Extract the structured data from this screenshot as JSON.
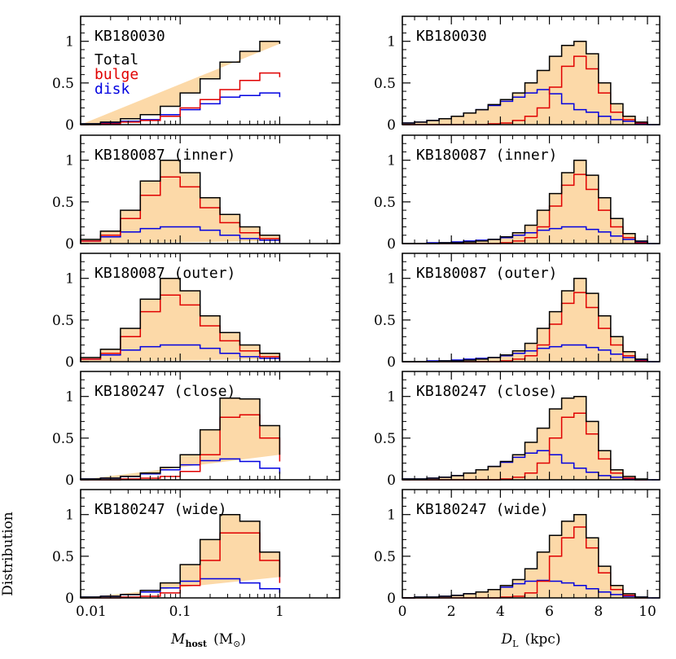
{
  "figure": {
    "ylabel": "Distribution",
    "xlabel_left": {
      "main": "M",
      "sub": "host",
      "open": "(M",
      "sub2": "⊙",
      "close": ")"
    },
    "xlabel_right": {
      "main": "D",
      "sub": "L",
      "unit": "(kpc)"
    }
  },
  "legend": {
    "entries": [
      {
        "name": "Total",
        "color": "#000000"
      },
      {
        "name": "bulge",
        "color": "#e00000"
      },
      {
        "name": "disk",
        "color": "#0000e0"
      }
    ]
  },
  "colors": {
    "total_fill": "#fcd9a8",
    "total": "#000000",
    "bulge": "#e00000",
    "disk": "#0000e0"
  },
  "chart_data": [
    {
      "type": "histogram",
      "panel": "KB180030 (mass)",
      "label": "KB180030",
      "xscale": "log",
      "xlim": [
        0.01,
        4
      ],
      "ylim": [
        0,
        1.3
      ],
      "xticks": [
        "0.01",
        "0.1",
        "1"
      ],
      "yticks": [
        "0",
        "0.5",
        "1"
      ],
      "bin_edges_log10": [
        -2.0,
        -1.8,
        -1.6,
        -1.4,
        -1.2,
        -1.0,
        -0.8,
        -0.6,
        -0.4,
        -0.2,
        0.0
      ],
      "series": [
        {
          "name": "Total",
          "values": [
            0.01,
            0.03,
            0.07,
            0.12,
            0.22,
            0.38,
            0.55,
            0.75,
            0.88,
            1.0,
            0.97
          ]
        },
        {
          "name": "bulge",
          "values": [
            0.0,
            0.01,
            0.03,
            0.05,
            0.1,
            0.2,
            0.3,
            0.42,
            0.53,
            0.62,
            0.57
          ]
        },
        {
          "name": "disk",
          "values": [
            0.01,
            0.02,
            0.04,
            0.06,
            0.12,
            0.18,
            0.25,
            0.33,
            0.35,
            0.38,
            0.33
          ]
        }
      ]
    },
    {
      "type": "histogram",
      "panel": "KB180030 (distance)",
      "label": "KB180030",
      "xscale": "linear",
      "xlim": [
        0,
        10.5
      ],
      "ylim": [
        0,
        1.3
      ],
      "xticks": [
        "0",
        "2",
        "4",
        "6",
        "8",
        "10"
      ],
      "yticks": [
        "0",
        "0.5",
        "1"
      ],
      "bin_edges": [
        0,
        0.5,
        1.0,
        1.5,
        2.0,
        2.5,
        3.0,
        3.5,
        4.0,
        4.5,
        5.0,
        5.5,
        6.0,
        6.5,
        7.0,
        7.5,
        8.0,
        8.5,
        9.0,
        9.5,
        10.0
      ],
      "series": [
        {
          "name": "Total",
          "values": [
            0.02,
            0.03,
            0.05,
            0.07,
            0.1,
            0.14,
            0.18,
            0.24,
            0.3,
            0.38,
            0.5,
            0.65,
            0.82,
            0.95,
            1.0,
            0.85,
            0.5,
            0.25,
            0.1,
            0.03
          ]
        },
        {
          "name": "bulge",
          "values": [
            0.0,
            0.0,
            0.0,
            0.0,
            0.0,
            0.0,
            0.0,
            0.01,
            0.02,
            0.05,
            0.1,
            0.2,
            0.45,
            0.7,
            0.82,
            0.67,
            0.38,
            0.15,
            0.06,
            0.02
          ]
        },
        {
          "name": "disk",
          "values": [
            0.02,
            0.03,
            0.05,
            0.07,
            0.1,
            0.14,
            0.18,
            0.23,
            0.28,
            0.33,
            0.38,
            0.42,
            0.37,
            0.25,
            0.18,
            0.15,
            0.1,
            0.06,
            0.04,
            0.01
          ]
        }
      ]
    },
    {
      "type": "histogram",
      "panel": "KB180087 (inner) (mass)",
      "label": "KB180087 (inner)",
      "xscale": "log",
      "xlim": [
        0.01,
        4
      ],
      "ylim": [
        0,
        1.3
      ],
      "xticks": [
        "0.01",
        "0.1",
        "1"
      ],
      "yticks": [
        "0",
        "0.5",
        "1"
      ],
      "bin_edges_log10": [
        -2.0,
        -1.8,
        -1.6,
        -1.4,
        -1.2,
        -1.0,
        -0.8,
        -0.6,
        -0.4,
        -0.2,
        0.0
      ],
      "series": [
        {
          "name": "Total",
          "values": [
            0.05,
            0.15,
            0.4,
            0.75,
            1.0,
            0.85,
            0.55,
            0.35,
            0.2,
            0.1,
            0.03
          ]
        },
        {
          "name": "bulge",
          "values": [
            0.03,
            0.1,
            0.3,
            0.58,
            0.8,
            0.68,
            0.43,
            0.25,
            0.13,
            0.06,
            0.02
          ]
        },
        {
          "name": "disk",
          "values": [
            0.03,
            0.08,
            0.14,
            0.18,
            0.2,
            0.2,
            0.16,
            0.1,
            0.06,
            0.04,
            0.01
          ]
        }
      ]
    },
    {
      "type": "histogram",
      "panel": "KB180087 (inner) (distance)",
      "label": "KB180087 (inner)",
      "xscale": "linear",
      "xlim": [
        0,
        10.5
      ],
      "ylim": [
        0,
        1.3
      ],
      "xticks": [
        "0",
        "2",
        "4",
        "6",
        "8",
        "10"
      ],
      "yticks": [
        "0",
        "0.5",
        "1"
      ],
      "bin_edges": [
        0,
        0.5,
        1.0,
        1.5,
        2.0,
        2.5,
        3.0,
        3.5,
        4.0,
        4.5,
        5.0,
        5.5,
        6.0,
        6.5,
        7.0,
        7.5,
        8.0,
        8.5,
        9.0,
        9.5,
        10.0
      ],
      "series": [
        {
          "name": "Total",
          "values": [
            0.0,
            0.0,
            0.0,
            0.01,
            0.01,
            0.02,
            0.03,
            0.05,
            0.08,
            0.13,
            0.22,
            0.4,
            0.6,
            0.85,
            1.0,
            0.82,
            0.55,
            0.3,
            0.12,
            0.03
          ]
        },
        {
          "name": "bulge",
          "values": [
            0.0,
            0.0,
            0.0,
            0.0,
            0.0,
            0.0,
            0.0,
            0.0,
            0.01,
            0.03,
            0.07,
            0.2,
            0.45,
            0.7,
            0.83,
            0.65,
            0.4,
            0.2,
            0.07,
            0.01
          ]
        },
        {
          "name": "disk",
          "values": [
            0.0,
            0.0,
            0.01,
            0.01,
            0.02,
            0.03,
            0.04,
            0.05,
            0.07,
            0.1,
            0.13,
            0.16,
            0.18,
            0.2,
            0.2,
            0.17,
            0.14,
            0.09,
            0.05,
            0.02
          ]
        }
      ]
    },
    {
      "type": "histogram",
      "panel": "KB180087 (outer) (mass)",
      "label": "KB180087 (outer)",
      "xscale": "log",
      "xlim": [
        0.01,
        4
      ],
      "ylim": [
        0,
        1.3
      ],
      "xticks": [
        "0.01",
        "0.1",
        "1"
      ],
      "yticks": [
        "0",
        "0.5",
        "1"
      ],
      "bin_edges_log10": [
        -2.0,
        -1.8,
        -1.6,
        -1.4,
        -1.2,
        -1.0,
        -0.8,
        -0.6,
        -0.4,
        -0.2,
        0.0
      ],
      "series": [
        {
          "name": "Total",
          "values": [
            0.05,
            0.15,
            0.4,
            0.75,
            1.0,
            0.85,
            0.55,
            0.35,
            0.2,
            0.1,
            0.03
          ]
        },
        {
          "name": "bulge",
          "values": [
            0.03,
            0.1,
            0.3,
            0.6,
            0.8,
            0.68,
            0.43,
            0.25,
            0.13,
            0.06,
            0.02
          ]
        },
        {
          "name": "disk",
          "values": [
            0.03,
            0.08,
            0.14,
            0.18,
            0.2,
            0.2,
            0.16,
            0.1,
            0.06,
            0.04,
            0.01
          ]
        }
      ]
    },
    {
      "type": "histogram",
      "panel": "KB180087 (outer) (distance)",
      "label": "KB180087 (outer)",
      "xscale": "linear",
      "xlim": [
        0,
        10.5
      ],
      "ylim": [
        0,
        1.3
      ],
      "xticks": [
        "0",
        "2",
        "4",
        "6",
        "8",
        "10"
      ],
      "yticks": [
        "0",
        "0.5",
        "1"
      ],
      "bin_edges": [
        0,
        0.5,
        1.0,
        1.5,
        2.0,
        2.5,
        3.0,
        3.5,
        4.0,
        4.5,
        5.0,
        5.5,
        6.0,
        6.5,
        7.0,
        7.5,
        8.0,
        8.5,
        9.0,
        9.5,
        10.0
      ],
      "series": [
        {
          "name": "Total",
          "values": [
            0.0,
            0.0,
            0.0,
            0.01,
            0.01,
            0.02,
            0.03,
            0.05,
            0.08,
            0.13,
            0.22,
            0.4,
            0.6,
            0.85,
            1.0,
            0.82,
            0.55,
            0.3,
            0.12,
            0.03
          ]
        },
        {
          "name": "bulge",
          "values": [
            0.0,
            0.0,
            0.0,
            0.0,
            0.0,
            0.0,
            0.0,
            0.0,
            0.01,
            0.03,
            0.07,
            0.2,
            0.45,
            0.7,
            0.83,
            0.65,
            0.4,
            0.2,
            0.07,
            0.01
          ]
        },
        {
          "name": "disk",
          "values": [
            0.0,
            0.0,
            0.01,
            0.01,
            0.02,
            0.03,
            0.04,
            0.05,
            0.07,
            0.1,
            0.13,
            0.16,
            0.18,
            0.2,
            0.2,
            0.17,
            0.14,
            0.09,
            0.05,
            0.02
          ]
        }
      ]
    },
    {
      "type": "histogram",
      "panel": "KB180247 (close) (mass)",
      "label": "KB180247 (close)",
      "xscale": "log",
      "xlim": [
        0.01,
        4
      ],
      "ylim": [
        0,
        1.3
      ],
      "xticks": [
        "0.01",
        "0.1",
        "1"
      ],
      "yticks": [
        "0",
        "0.5",
        "1"
      ],
      "bin_edges_log10": [
        -2.0,
        -1.8,
        -1.6,
        -1.4,
        -1.2,
        -1.0,
        -0.8,
        -0.6,
        -0.4,
        -0.2,
        0.0
      ],
      "series": [
        {
          "name": "Total",
          "values": [
            0.01,
            0.02,
            0.04,
            0.08,
            0.15,
            0.3,
            0.6,
            0.98,
            0.97,
            0.65,
            0.3
          ]
        },
        {
          "name": "bulge",
          "values": [
            0.0,
            0.0,
            0.01,
            0.02,
            0.04,
            0.1,
            0.3,
            0.75,
            0.78,
            0.5,
            0.22
          ]
        },
        {
          "name": "disk",
          "values": [
            0.01,
            0.02,
            0.04,
            0.07,
            0.12,
            0.18,
            0.23,
            0.25,
            0.22,
            0.14,
            0.07
          ]
        }
      ]
    },
    {
      "type": "histogram",
      "panel": "KB180247 (close) (distance)",
      "label": "KB180247 (close)",
      "xscale": "linear",
      "xlim": [
        0,
        10.5
      ],
      "ylim": [
        0,
        1.3
      ],
      "xticks": [
        "0",
        "2",
        "4",
        "6",
        "8",
        "10"
      ],
      "yticks": [
        "0",
        "0.5",
        "1"
      ],
      "bin_edges": [
        0,
        0.5,
        1.0,
        1.5,
        2.0,
        2.5,
        3.0,
        3.5,
        4.0,
        4.5,
        5.0,
        5.5,
        6.0,
        6.5,
        7.0,
        7.5,
        8.0,
        8.5,
        9.0,
        9.5,
        10.0
      ],
      "series": [
        {
          "name": "Total",
          "values": [
            0.01,
            0.01,
            0.02,
            0.03,
            0.05,
            0.08,
            0.12,
            0.16,
            0.22,
            0.3,
            0.45,
            0.62,
            0.85,
            0.98,
            1.0,
            0.7,
            0.35,
            0.12,
            0.04,
            0.01
          ]
        },
        {
          "name": "bulge",
          "values": [
            0.0,
            0.0,
            0.0,
            0.0,
            0.0,
            0.0,
            0.0,
            0.0,
            0.01,
            0.03,
            0.08,
            0.2,
            0.5,
            0.75,
            0.8,
            0.55,
            0.25,
            0.08,
            0.02,
            0.0
          ]
        },
        {
          "name": "disk",
          "values": [
            0.01,
            0.01,
            0.02,
            0.03,
            0.05,
            0.08,
            0.12,
            0.16,
            0.21,
            0.27,
            0.32,
            0.35,
            0.3,
            0.2,
            0.14,
            0.09,
            0.05,
            0.03,
            0.01,
            0.0
          ]
        }
      ]
    },
    {
      "type": "histogram",
      "panel": "KB180247 (wide) (mass)",
      "label": "KB180247 (wide)",
      "xscale": "log",
      "xlim": [
        0.01,
        4
      ],
      "ylim": [
        0,
        1.3
      ],
      "xticks": [
        "0.01",
        "0.1",
        "1"
      ],
      "yticks": [
        "0",
        "0.5",
        "1"
      ],
      "bin_edges_log10": [
        -2.0,
        -1.8,
        -1.6,
        -1.4,
        -1.2,
        -1.0,
        -0.8,
        -0.6,
        -0.4,
        -0.2,
        0.0
      ],
      "series": [
        {
          "name": "Total",
          "values": [
            0.01,
            0.02,
            0.04,
            0.09,
            0.18,
            0.4,
            0.7,
            1.0,
            0.92,
            0.55,
            0.25
          ]
        },
        {
          "name": "bulge",
          "values": [
            0.0,
            0.0,
            0.01,
            0.02,
            0.06,
            0.15,
            0.45,
            0.78,
            0.78,
            0.45,
            0.18
          ]
        },
        {
          "name": "disk",
          "values": [
            0.01,
            0.02,
            0.04,
            0.07,
            0.12,
            0.2,
            0.23,
            0.23,
            0.18,
            0.11,
            0.06
          ]
        }
      ]
    },
    {
      "type": "histogram",
      "panel": "KB180247 (wide) (distance)",
      "label": "KB180247 (wide)",
      "xscale": "linear",
      "xlim": [
        0,
        10.5
      ],
      "ylim": [
        0,
        1.3
      ],
      "xticks": [
        "0",
        "2",
        "4",
        "6",
        "8",
        "10"
      ],
      "yticks": [
        "0",
        "0.5",
        "1"
      ],
      "bin_edges": [
        0,
        0.5,
        1.0,
        1.5,
        2.0,
        2.5,
        3.0,
        3.5,
        4.0,
        4.5,
        5.0,
        5.5,
        6.0,
        6.5,
        7.0,
        7.5,
        8.0,
        8.5,
        9.0,
        9.5,
        10.0
      ],
      "series": [
        {
          "name": "Total",
          "values": [
            0.0,
            0.01,
            0.01,
            0.02,
            0.03,
            0.05,
            0.07,
            0.1,
            0.15,
            0.22,
            0.35,
            0.55,
            0.75,
            0.92,
            1.0,
            0.72,
            0.38,
            0.15,
            0.05,
            0.01
          ]
        },
        {
          "name": "bulge",
          "values": [
            0.0,
            0.0,
            0.0,
            0.0,
            0.0,
            0.0,
            0.0,
            0.0,
            0.01,
            0.02,
            0.06,
            0.2,
            0.5,
            0.72,
            0.85,
            0.6,
            0.3,
            0.1,
            0.03,
            0.0
          ]
        },
        {
          "name": "disk",
          "values": [
            0.0,
            0.01,
            0.01,
            0.02,
            0.03,
            0.05,
            0.07,
            0.1,
            0.13,
            0.17,
            0.2,
            0.21,
            0.2,
            0.18,
            0.15,
            0.11,
            0.07,
            0.04,
            0.02,
            0.01
          ]
        }
      ]
    }
  ]
}
